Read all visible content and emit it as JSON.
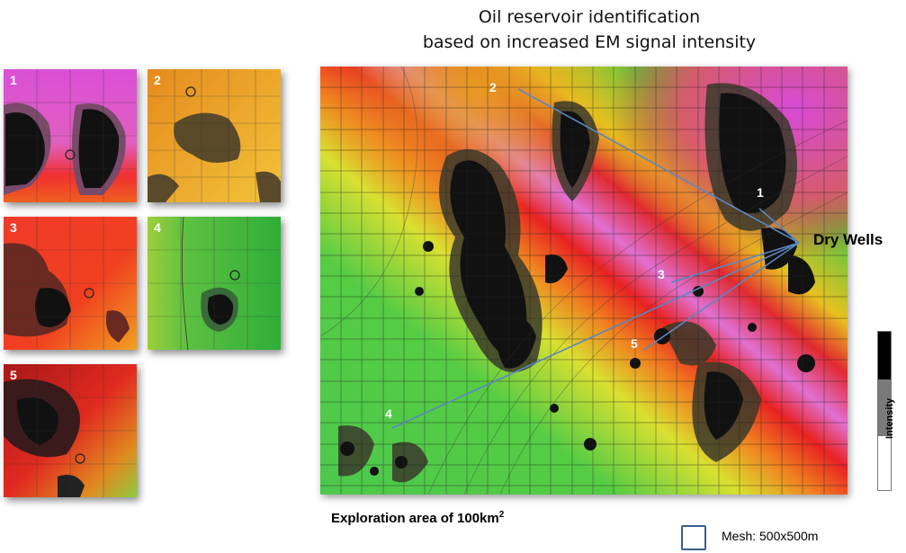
{
  "title": {
    "line1": "Oil reservoir identification",
    "line2": "based on increased EM signal intensity"
  },
  "thumbnails": [
    {
      "label": "1",
      "dominant_color": "#d64fd0"
    },
    {
      "label": "2",
      "dominant_color": "#e8a42a"
    },
    {
      "label": "3",
      "dominant_color": "#f0362a"
    },
    {
      "label": "4",
      "dominant_color": "#3fbf3f"
    },
    {
      "label": "5",
      "dominant_color": "#c42a22"
    }
  ],
  "map": {
    "well_numbers": [
      "1",
      "2",
      "3",
      "4",
      "5"
    ],
    "dry_wells_label": "Dry Wells",
    "line_color": "#5a86c0",
    "colors": {
      "low": "#33cc33",
      "mid": "#f0e020",
      "high": "#ee2222",
      "peak": "#e070e0"
    }
  },
  "caption": {
    "area_text": "Exploration area of 100km",
    "area_superscript": "2"
  },
  "mesh": {
    "label": "Mesh: 500x500m"
  },
  "scale": {
    "label": "Intensity"
  }
}
